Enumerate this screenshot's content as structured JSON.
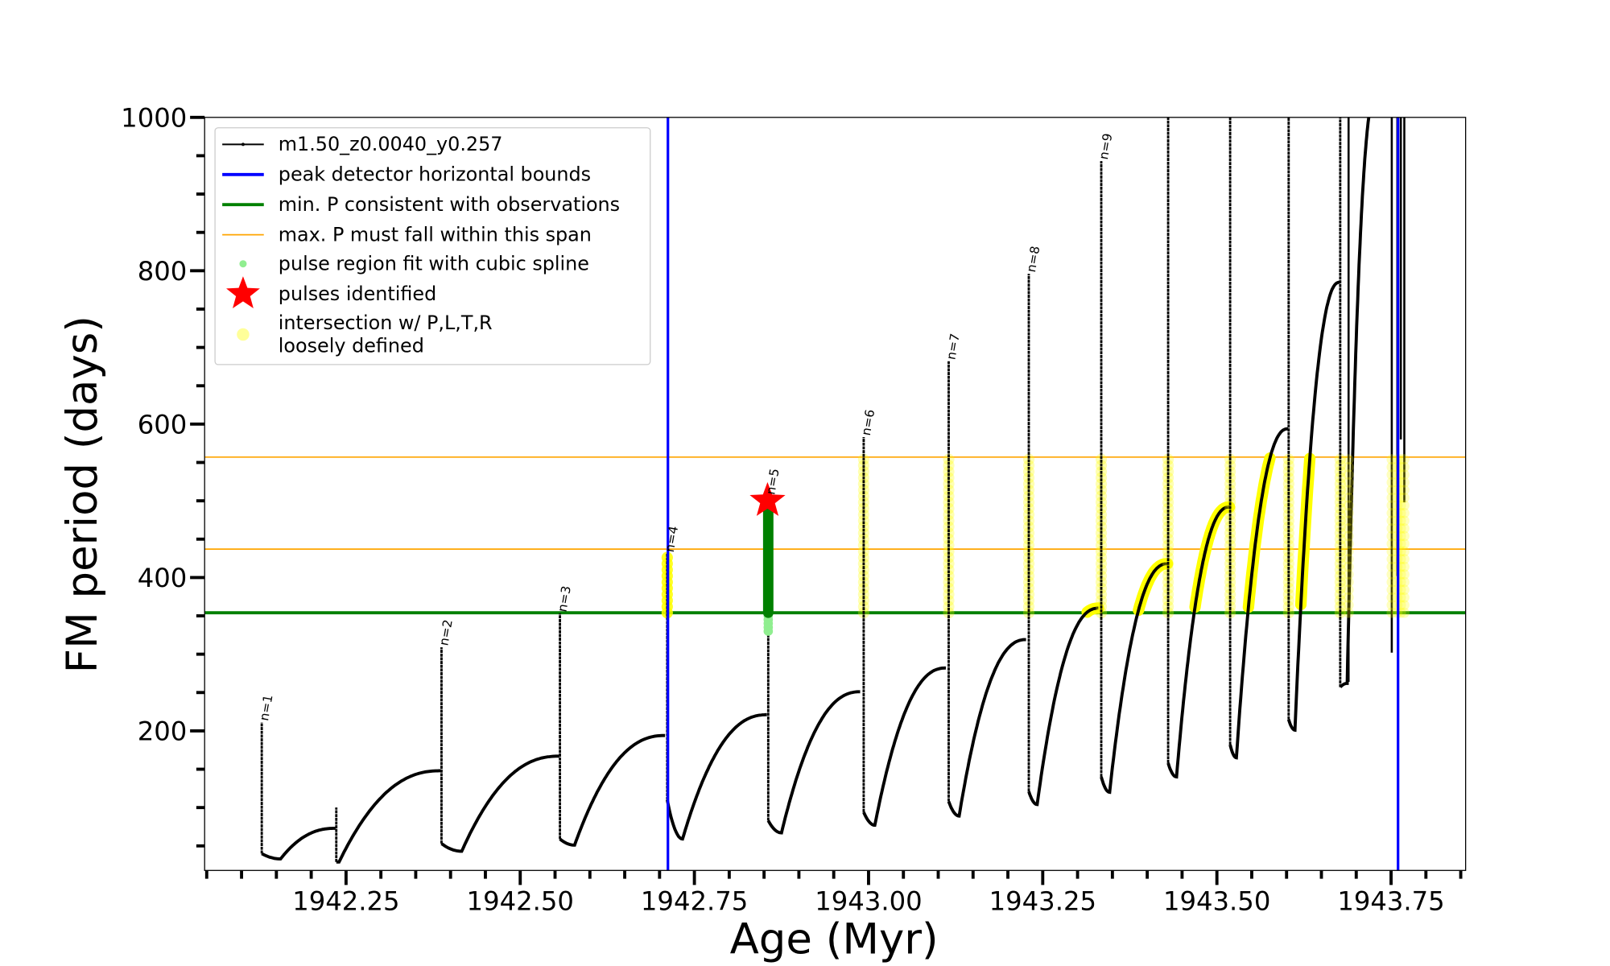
{
  "chart_data": {
    "type": "line",
    "xlabel": "Age (Myr)",
    "ylabel": "FM period (days)",
    "xlim": [
      1942.047,
      1943.857
    ],
    "ylim": [
      18,
      1000
    ],
    "xticks": [
      {
        "value": 1942.25,
        "label": "1942.25"
      },
      {
        "value": 1942.5,
        "label": "1942.50"
      },
      {
        "value": 1942.75,
        "label": "1942.75"
      },
      {
        "value": 1943.0,
        "label": "1943.00"
      },
      {
        "value": 1943.25,
        "label": "1943.25"
      },
      {
        "value": 1943.5,
        "label": "1943.50"
      },
      {
        "value": 1943.75,
        "label": "1943.75"
      }
    ],
    "x_minor_step": 0.05,
    "yticks": [
      {
        "value": 200,
        "label": "200"
      },
      {
        "value": 400,
        "label": "400"
      },
      {
        "value": 600,
        "label": "600"
      },
      {
        "value": 800,
        "label": "800"
      },
      {
        "value": 1000,
        "label": "1000"
      }
    ],
    "y_minor_step": 50,
    "grid": false,
    "legend_placement": "upper-left",
    "legend": [
      {
        "label": "m1.50_z0.0040_y0.257",
        "kind": "line-dots",
        "color": "#000000"
      },
      {
        "label": "peak detector horizontal bounds",
        "kind": "line",
        "color": "#0000ff"
      },
      {
        "label": "min. P consistent with observations",
        "kind": "line",
        "color": "#008000"
      },
      {
        "label": "max. P must fall within this span",
        "kind": "thin-line",
        "color": "#ffa500"
      },
      {
        "label": "pulse region fit with cubic spline",
        "kind": "dot",
        "color": "#90ee90"
      },
      {
        "label": "pulses identified",
        "kind": "star",
        "color": "#ff0000"
      },
      {
        "label": "intersection w/ P,L,T,R",
        "label2": "loosely defined",
        "kind": "dot",
        "color": "#ffff99"
      }
    ],
    "hlines": {
      "min_P": {
        "value": 354,
        "color": "#008000"
      },
      "max_P_span": {
        "values": [
          437,
          557
        ],
        "color": "#ffa500"
      }
    },
    "vlines": {
      "values": [
        1942.712,
        1943.76
      ],
      "color": "#0000ff"
    },
    "series_name": "m1.50_z0.0040_y0.257",
    "cycles": [
      {
        "pulse_age": 1942.129,
        "peak": 211,
        "low": 40,
        "min_age": 1942.156,
        "min_P": 33,
        "end_age": 1942.235,
        "end_P": 73,
        "label": "n=1",
        "highlight": []
      },
      {
        "pulse_age": 1942.236,
        "peak": 100,
        "low": 29,
        "min_age": 1942.24,
        "min_P": 29,
        "end_age": 1942.386,
        "end_P": 148,
        "label": "",
        "highlight": []
      },
      {
        "pulse_age": 1942.387,
        "peak": 309,
        "low": 53,
        "min_age": 1942.416,
        "min_P": 43,
        "end_age": 1942.556,
        "end_P": 167,
        "label": "n=2",
        "highlight": []
      },
      {
        "pulse_age": 1942.557,
        "peak": 353,
        "low": 59,
        "min_age": 1942.578,
        "min_P": 51,
        "end_age": 1942.708,
        "end_P": 194,
        "label": "n=3",
        "highlight": []
      },
      {
        "pulse_age": 1942.711,
        "peak": 431,
        "low": 110,
        "min_age": 1942.733,
        "min_P": 59,
        "end_age": 1942.854,
        "end_P": 221,
        "label": "n=4",
        "highlight": [
          "pulse-solid"
        ]
      },
      {
        "pulse_age": 1942.856,
        "peak": 506,
        "low": 83,
        "min_age": 1942.875,
        "min_P": 67,
        "end_age": 1942.988,
        "end_P": 251,
        "label": "n=5",
        "highlight": [
          "spline"
        ]
      },
      {
        "pulse_age": 1942.993,
        "peak": 583,
        "low": 94,
        "min_age": 1943.009,
        "min_P": 77,
        "end_age": 1943.111,
        "end_P": 282,
        "label": "n=6",
        "highlight": [
          "pulse-faint"
        ]
      },
      {
        "pulse_age": 1943.115,
        "peak": 682,
        "low": 108,
        "min_age": 1943.13,
        "min_P": 89,
        "end_age": 1943.226,
        "end_P": 319,
        "label": "n=7",
        "highlight": [
          "pulse-faint"
        ]
      },
      {
        "pulse_age": 1943.23,
        "peak": 796,
        "low": 121,
        "min_age": 1943.242,
        "min_P": 104,
        "end_age": 1943.33,
        "end_P": 360,
        "label": "n=8",
        "highlight": [
          "pulse-faint",
          "rise"
        ]
      },
      {
        "pulse_age": 1943.334,
        "peak": 943,
        "low": 140,
        "min_age": 1943.346,
        "min_P": 120,
        "end_age": 1943.429,
        "end_P": 418,
        "label": "n=9",
        "highlight": [
          "pulse-faint",
          "rise"
        ]
      },
      {
        "pulse_age": 1943.43,
        "peak": 1100,
        "low": 158,
        "min_age": 1943.442,
        "min_P": 140,
        "end_age": 1943.518,
        "end_P": 492,
        "label": "",
        "highlight": [
          "pulse-faint",
          "rise"
        ]
      },
      {
        "pulse_age": 1943.519,
        "peak": 1100,
        "low": 182,
        "min_age": 1943.528,
        "min_P": 165,
        "end_age": 1943.602,
        "end_P": 594,
        "label": "",
        "highlight": [
          "pulse-faint",
          "rise"
        ]
      },
      {
        "pulse_age": 1943.603,
        "peak": 1100,
        "low": 215,
        "min_age": 1943.612,
        "min_P": 201,
        "end_age": 1943.676,
        "end_P": 785,
        "label": "",
        "highlight": [
          "pulse-faint",
          "rise"
        ]
      },
      {
        "pulse_age": 1943.677,
        "peak": 1100,
        "low": 257,
        "min_age": 1943.687,
        "min_P": 262,
        "end_age": 1943.728,
        "end_P": 1030,
        "label": "",
        "highlight": [
          "pulse-faint"
        ]
      }
    ],
    "late_spikes": [
      {
        "age": 1943.689,
        "from": 264,
        "to": 1100
      },
      {
        "age": 1943.751,
        "from": 302,
        "to": 1100
      },
      {
        "age": 1943.759,
        "from": 402,
        "to": 1100
      },
      {
        "age": 1943.764,
        "from": 580,
        "to": 1100
      },
      {
        "age": 1943.769,
        "from": 498,
        "to": 1100
      }
    ],
    "spline_region": {
      "age": 1942.856,
      "from": 354,
      "to": 500,
      "faint_from": 330
    },
    "pulse_identified": {
      "age": 1942.855,
      "P": 500
    }
  }
}
